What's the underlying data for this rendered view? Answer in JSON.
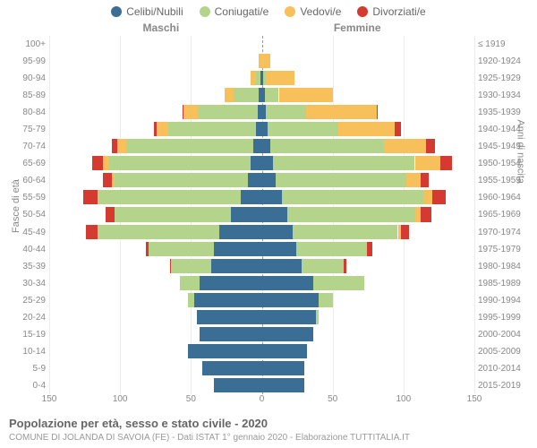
{
  "legend": [
    {
      "label": "Celibi/Nubili",
      "color": "#3b6e94"
    },
    {
      "label": "Coniugati/e",
      "color": "#b4d48c"
    },
    {
      "label": "Vedovi/e",
      "color": "#f8c05a"
    },
    {
      "label": "Divorziati/e",
      "color": "#d43a2f"
    }
  ],
  "side_left": "Maschi",
  "side_right": "Femmine",
  "left_axis_title": "Fasce di età",
  "right_axis_title": "Anni di nascita",
  "x_ticks": [
    150,
    100,
    50,
    0,
    50,
    100,
    150
  ],
  "x_max": 150,
  "title": "Popolazione per età, sesso e stato civile - 2020",
  "subtitle": "COMUNE DI JOLANDA DI SAVOIA (FE) - Dati ISTAT 1° gennaio 2020 - Elaborazione TUTTITALIA.IT",
  "title_fontsize": 13,
  "subtitle_fontsize": 10,
  "subtitle_color": "#999",
  "rows": [
    {
      "age": "100+",
      "year": "≤ 1919",
      "m": [
        0,
        0,
        0,
        0
      ],
      "f": [
        0,
        0,
        0,
        0
      ]
    },
    {
      "age": "95-99",
      "year": "1920-1924",
      "m": [
        0,
        0,
        2,
        0
      ],
      "f": [
        0,
        0,
        6,
        0
      ]
    },
    {
      "age": "90-94",
      "year": "1925-1929",
      "m": [
        1,
        3,
        4,
        0
      ],
      "f": [
        1,
        2,
        20,
        0
      ]
    },
    {
      "age": "85-89",
      "year": "1930-1934",
      "m": [
        2,
        18,
        6,
        0
      ],
      "f": [
        2,
        10,
        38,
        0
      ]
    },
    {
      "age": "80-84",
      "year": "1935-1939",
      "m": [
        3,
        42,
        10,
        1
      ],
      "f": [
        3,
        28,
        50,
        1
      ]
    },
    {
      "age": "75-79",
      "year": "1940-1944",
      "m": [
        4,
        62,
        8,
        2
      ],
      "f": [
        4,
        50,
        40,
        4
      ]
    },
    {
      "age": "70-74",
      "year": "1945-1949",
      "m": [
        6,
        90,
        6,
        4
      ],
      "f": [
        6,
        80,
        30,
        6
      ]
    },
    {
      "age": "65-69",
      "year": "1950-1954",
      "m": [
        8,
        100,
        4,
        8
      ],
      "f": [
        8,
        100,
        18,
        8
      ]
    },
    {
      "age": "60-64",
      "year": "1955-1959",
      "m": [
        10,
        94,
        2,
        6
      ],
      "f": [
        10,
        92,
        10,
        6
      ]
    },
    {
      "age": "55-59",
      "year": "1960-1964",
      "m": [
        15,
        100,
        1,
        10
      ],
      "f": [
        14,
        100,
        6,
        10
      ]
    },
    {
      "age": "50-54",
      "year": "1965-1969",
      "m": [
        22,
        82,
        0,
        6
      ],
      "f": [
        18,
        90,
        4,
        8
      ]
    },
    {
      "age": "45-49",
      "year": "1970-1974",
      "m": [
        30,
        86,
        0,
        8
      ],
      "f": [
        22,
        74,
        2,
        6
      ]
    },
    {
      "age": "40-44",
      "year": "1975-1979",
      "m": [
        34,
        46,
        0,
        2
      ],
      "f": [
        24,
        50,
        0,
        4
      ]
    },
    {
      "age": "35-39",
      "year": "1980-1984",
      "m": [
        36,
        28,
        0,
        1
      ],
      "f": [
        28,
        30,
        0,
        2
      ]
    },
    {
      "age": "30-34",
      "year": "1985-1989",
      "m": [
        44,
        14,
        0,
        0
      ],
      "f": [
        36,
        36,
        0,
        0
      ]
    },
    {
      "age": "25-29",
      "year": "1990-1994",
      "m": [
        48,
        4,
        0,
        0
      ],
      "f": [
        40,
        10,
        0,
        0
      ]
    },
    {
      "age": "20-24",
      "year": "1995-1999",
      "m": [
        46,
        0,
        0,
        0
      ],
      "f": [
        38,
        2,
        0,
        0
      ]
    },
    {
      "age": "15-19",
      "year": "2000-2004",
      "m": [
        44,
        0,
        0,
        0
      ],
      "f": [
        36,
        0,
        0,
        0
      ]
    },
    {
      "age": "10-14",
      "year": "2005-2009",
      "m": [
        52,
        0,
        0,
        0
      ],
      "f": [
        32,
        0,
        0,
        0
      ]
    },
    {
      "age": "5-9",
      "year": "2010-2014",
      "m": [
        42,
        0,
        0,
        0
      ],
      "f": [
        30,
        0,
        0,
        0
      ]
    },
    {
      "age": "0-4",
      "year": "2015-2019",
      "m": [
        34,
        0,
        0,
        0
      ],
      "f": [
        30,
        0,
        0,
        0
      ]
    }
  ]
}
